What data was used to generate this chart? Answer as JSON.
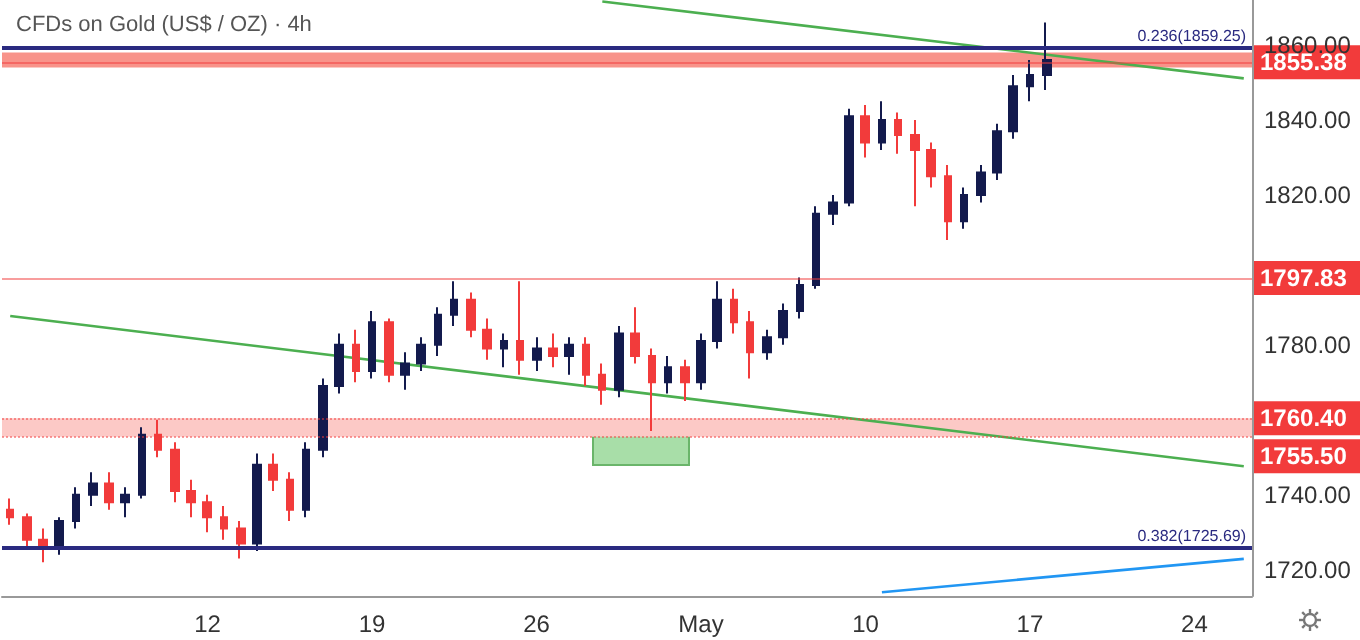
{
  "chart_data": {
    "type": "candlestick",
    "title": "CFDs on Gold (US$ / OZ) · 4h",
    "categories": [
      null,
      null,
      null,
      null,
      null,
      null,
      null,
      null,
      null,
      null,
      null,
      null,
      "12",
      null,
      null,
      null,
      null,
      null,
      null,
      null,
      null,
      null,
      "19",
      null,
      null,
      null,
      null,
      null,
      null,
      null,
      null,
      null,
      "26",
      null,
      null,
      null,
      null,
      null,
      null,
      null,
      null,
      null,
      "May",
      null,
      null,
      null,
      null,
      null,
      null,
      null,
      null,
      null,
      "10",
      null,
      null,
      null,
      null,
      null,
      null,
      null,
      null,
      null,
      "17",
      null,
      null,
      null,
      null,
      null,
      null,
      null,
      null,
      null,
      "24",
      null,
      null,
      null
    ],
    "ohlc": [
      [
        1736,
        1739,
        1732,
        1734
      ],
      [
        1734,
        1735,
        1726,
        1728
      ],
      [
        1728,
        1731,
        1722,
        1726
      ],
      [
        1726,
        1734,
        1724,
        1733
      ],
      [
        1733,
        1742,
        1731,
        1740
      ],
      [
        1740,
        1746,
        1737,
        1743
      ],
      [
        1743,
        1746,
        1736,
        1738
      ],
      [
        1738,
        1742,
        1734,
        1740
      ],
      [
        1740,
        1758,
        1739,
        1756
      ],
      [
        1756,
        1760,
        1750,
        1752
      ],
      [
        1752,
        1754,
        1738,
        1741
      ],
      [
        1741,
        1744,
        1734,
        1738
      ],
      [
        1738,
        1740,
        1730,
        1734
      ],
      [
        1734,
        1737,
        1728,
        1731
      ],
      [
        1731,
        1733,
        1723,
        1727
      ],
      [
        1727,
        1751,
        1725,
        1748
      ],
      [
        1748,
        1751,
        1741,
        1744
      ],
      [
        1744,
        1746,
        1733,
        1736
      ],
      [
        1736,
        1754,
        1734,
        1752
      ],
      [
        1752,
        1771,
        1750,
        1769
      ],
      [
        1769,
        1783,
        1767,
        1780
      ],
      [
        1780,
        1784,
        1770,
        1773
      ],
      [
        1773,
        1789,
        1771,
        1786
      ],
      [
        1786,
        1787,
        1770,
        1772
      ],
      [
        1772,
        1778,
        1768,
        1775
      ],
      [
        1775,
        1782,
        1773,
        1780
      ],
      [
        1780,
        1790,
        1777,
        1788
      ],
      [
        1788,
        1797,
        1785,
        1792
      ],
      [
        1792,
        1794,
        1782,
        1784
      ],
      [
        1784,
        1787,
        1776,
        1779
      ],
      [
        1779,
        1783,
        1774,
        1781
      ],
      [
        1781,
        1797,
        1772,
        1776
      ],
      [
        1776,
        1782,
        1773,
        1779
      ],
      [
        1779,
        1783,
        1774,
        1777
      ],
      [
        1777,
        1782,
        1772,
        1780
      ],
      [
        1780,
        1782,
        1769,
        1772
      ],
      [
        1772,
        1775,
        1764,
        1768
      ],
      [
        1768,
        1785,
        1766,
        1783
      ],
      [
        1783,
        1790,
        1775,
        1777
      ],
      [
        1777,
        1779,
        1757,
        1770
      ],
      [
        1770,
        1777,
        1767,
        1774
      ],
      [
        1774,
        1776,
        1765,
        1770
      ],
      [
        1770,
        1783,
        1768,
        1781
      ],
      [
        1781,
        1797,
        1779,
        1792
      ],
      [
        1792,
        1795,
        1783,
        1786
      ],
      [
        1786,
        1789,
        1771,
        1778
      ],
      [
        1778,
        1784,
        1776,
        1782
      ],
      [
        1782,
        1791,
        1780,
        1789
      ],
      [
        1789,
        1798,
        1787,
        1796
      ],
      [
        1796,
        1817,
        1795,
        1815
      ],
      [
        1815,
        1820,
        1812,
        1818
      ],
      [
        1818,
        1843,
        1817,
        1841
      ],
      [
        1841,
        1844,
        1830,
        1834
      ],
      [
        1834,
        1845,
        1832,
        1840
      ],
      [
        1840,
        1842,
        1831,
        1836
      ],
      [
        1836,
        1840,
        1817,
        1832
      ],
      [
        1832,
        1834,
        1822,
        1825
      ],
      [
        1825,
        1828,
        1808,
        1813
      ],
      [
        1813,
        1822,
        1811,
        1820
      ],
      [
        1820,
        1828,
        1818,
        1826
      ],
      [
        1826,
        1839,
        1824,
        1837
      ],
      [
        1837,
        1852,
        1835,
        1849
      ],
      [
        1849,
        1856,
        1845,
        1852
      ],
      [
        1852,
        1866,
        1848,
        1856
      ],
      null,
      null,
      null,
      null,
      null,
      null,
      null,
      null,
      null,
      null,
      null,
      null
    ],
    "colors": [
      "#f23b3b",
      "#f23b3b",
      "#f23b3b",
      "#131a4d",
      "#131a4d",
      "#131a4d",
      "#f23b3b",
      "#131a4d",
      "#131a4d",
      "#f23b3b",
      "#f23b3b",
      "#f23b3b",
      "#f23b3b",
      "#f23b3b",
      "#f23b3b",
      "#131a4d",
      "#f23b3b",
      "#f23b3b",
      "#131a4d",
      "#131a4d",
      "#131a4d",
      "#f23b3b",
      "#131a4d",
      "#f23b3b",
      "#131a4d",
      "#131a4d",
      "#131a4d",
      "#131a4d",
      "#f23b3b",
      "#f23b3b",
      "#131a4d",
      "#f23b3b",
      "#131a4d",
      "#f23b3b",
      "#131a4d",
      "#f23b3b",
      "#f23b3b",
      "#131a4d",
      "#f23b3b",
      "#f23b3b",
      "#131a4d",
      "#f23b3b",
      "#131a4d",
      "#131a4d",
      "#f23b3b",
      "#f23b3b",
      "#131a4d",
      "#131a4d",
      "#131a4d",
      "#131a4d",
      "#131a4d",
      "#131a4d",
      "#f23b3b",
      "#131a4d",
      "#f23b3b",
      "#f23b3b",
      "#f23b3b",
      "#f23b3b",
      "#131a4d",
      "#131a4d",
      "#131a4d",
      "#131a4d",
      "#131a4d",
      "#131a4d",
      null,
      null,
      null,
      null,
      null,
      null,
      null,
      null,
      null,
      null,
      null,
      null
    ],
    "series": [
      {
        "type": "line",
        "color": "#4caf50",
        "values": [
          null,
          null,
          null,
          null,
          null,
          null,
          null,
          null,
          null,
          null,
          null,
          null,
          null,
          null,
          null,
          null,
          null,
          null,
          null,
          null,
          null,
          null,
          null,
          null,
          null,
          null,
          null,
          null,
          null,
          null,
          null,
          null,
          null,
          null,
          null,
          null,
          1871.6,
          null,
          null,
          null,
          null,
          null,
          null,
          null,
          null,
          null,
          null,
          null,
          null,
          null,
          null,
          null,
          null,
          null,
          null,
          null,
          null,
          null,
          null,
          null,
          null,
          null,
          null,
          null,
          null,
          null,
          null,
          null,
          null,
          null,
          null,
          null,
          null,
          null,
          null,
          1851.1
        ]
      },
      {
        "type": "line",
        "color": "#4caf50",
        "values": [
          1787.7,
          null,
          null,
          null,
          null,
          null,
          null,
          null,
          null,
          null,
          null,
          null,
          null,
          null,
          null,
          null,
          null,
          null,
          null,
          null,
          null,
          null,
          null,
          null,
          null,
          null,
          null,
          null,
          null,
          null,
          null,
          null,
          null,
          null,
          null,
          null,
          null,
          null,
          null,
          null,
          null,
          null,
          null,
          null,
          null,
          null,
          null,
          null,
          null,
          null,
          null,
          null,
          null,
          null,
          null,
          null,
          null,
          null,
          null,
          null,
          null,
          null,
          null,
          null,
          null,
          null,
          null,
          null,
          null,
          null,
          null,
          null,
          null,
          null,
          null,
          1747.6
        ]
      },
      {
        "type": "line",
        "color": "#2196f3",
        "values": [
          null,
          null,
          null,
          null,
          null,
          null,
          null,
          null,
          null,
          null,
          null,
          null,
          null,
          null,
          null,
          null,
          null,
          null,
          null,
          null,
          null,
          null,
          null,
          null,
          null,
          null,
          null,
          null,
          null,
          null,
          null,
          null,
          null,
          null,
          null,
          null,
          null,
          null,
          null,
          null,
          null,
          null,
          null,
          null,
          null,
          null,
          null,
          null,
          null,
          null,
          null,
          null,
          null,
          1714,
          null,
          null,
          null,
          null,
          null,
          null,
          null,
          null,
          null,
          null,
          null,
          null,
          null,
          null,
          null,
          null,
          null,
          null,
          null,
          null,
          null,
          1722.9
        ]
      }
    ],
    "ylim": [
      1713,
      1872
    ],
    "yticks": [
      {
        "value": 1720,
        "label": "1720.00"
      },
      {
        "value": 1740,
        "label": "1740.00"
      },
      {
        "value": 1780,
        "label": "1780.00"
      },
      {
        "value": 1820,
        "label": "1820.00"
      },
      {
        "value": 1840,
        "label": "1840.00"
      },
      {
        "value": 1860,
        "label": "1860.00"
      }
    ],
    "ref_lines": [
      {
        "axis": "y",
        "value": 1859.25,
        "color": "#2a2a80",
        "line_style": "solid"
      },
      {
        "axis": "y",
        "value": 1725.69,
        "color": "#2a2a80",
        "line_style": "solid"
      },
      {
        "axis": "y",
        "value": 1855.38,
        "label": "1855.38",
        "color": "#f23b3b",
        "line_style": "solid"
      },
      {
        "axis": "y",
        "value": 1797.83,
        "label": "1797.83",
        "color": "#f23b3b",
        "line_style": "solid"
      },
      {
        "axis": "y",
        "value": 1760.4,
        "label": "1760.40",
        "color": "#f23b3b",
        "line_style": "dotted"
      },
      {
        "axis": "y",
        "value": 1755.5,
        "label": "1755.50",
        "color": "#f23b3b",
        "line_style": "dotted"
      }
    ],
    "bands": [
      {
        "axis": "y",
        "from": 1854,
        "to": 1858,
        "color": "#f8938a"
      },
      {
        "axis": "y",
        "from": 1755.5,
        "to": 1760.4,
        "color": "#fcc9c6"
      }
    ],
    "annotations": [
      {
        "text": "0.236(1859.25)",
        "y": 1859.25
      },
      {
        "text": "0.382(1725.69)",
        "y": 1725.69
      }
    ],
    "grid": false
  }
}
